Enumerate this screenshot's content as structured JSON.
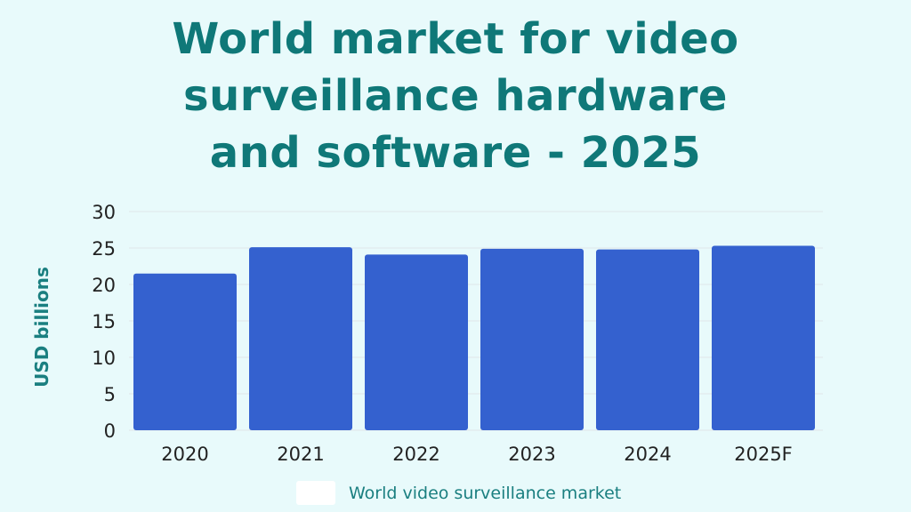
{
  "chart_data": {
    "type": "bar",
    "title_lines": [
      "World market for video",
      "surveillance hardware",
      "and software - 2025"
    ],
    "ylabel": "USD billions",
    "xlabel": "",
    "categories": [
      "2020",
      "2021",
      "2022",
      "2023",
      "2024",
      "2025F"
    ],
    "series": [
      {
        "name": "World video surveillance market",
        "values": [
          21.5,
          25.1,
          24.1,
          24.9,
          24.8,
          25.3
        ]
      }
    ],
    "ylim": [
      0,
      30
    ],
    "yticks": [
      "0",
      "5",
      "10",
      "15",
      "20",
      "25",
      "30"
    ],
    "grid": true,
    "legend": "bottom-center",
    "colors": {
      "bar": "#3461cf",
      "title": "#0f7878",
      "legend_swatch": "#ffffff",
      "grid": "#e0e6e8",
      "background": "#e8fafb"
    }
  }
}
